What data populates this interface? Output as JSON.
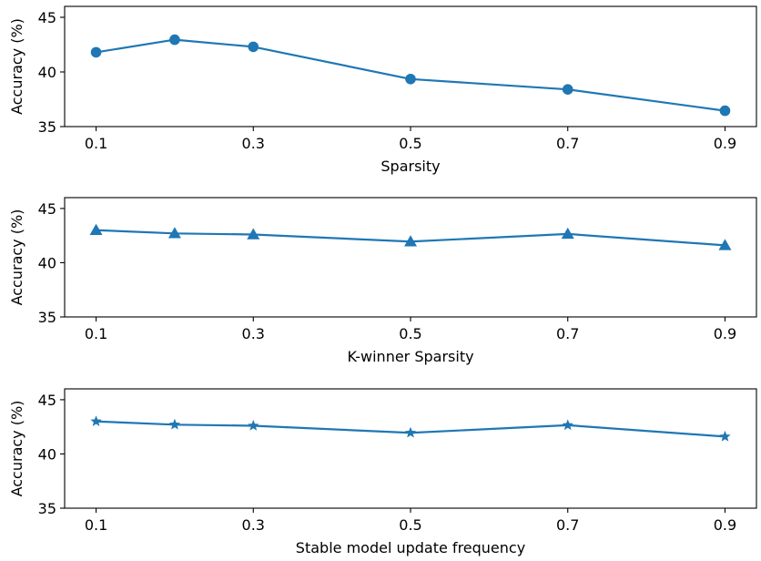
{
  "chart_data": [
    {
      "type": "line",
      "marker": "circle",
      "color": "#1f77b4",
      "xlabel": "Sparsity",
      "ylabel": "Accuracy (%)",
      "x": [
        0.1,
        0.2,
        0.3,
        0.5,
        0.7,
        0.9
      ],
      "xticks": [
        "0.1",
        "0.3",
        "0.5",
        "0.7",
        "0.9"
      ],
      "yticks": [
        "35",
        "40",
        "45"
      ],
      "xlim": [
        0.06,
        0.94
      ],
      "ylim": [
        35,
        46
      ],
      "grid": false,
      "series": [
        {
          "values": [
            41.8,
            42.95,
            42.3,
            39.35,
            38.4,
            36.45
          ]
        }
      ]
    },
    {
      "type": "line",
      "marker": "triangle",
      "color": "#1f77b4",
      "xlabel": "K-winner Sparsity",
      "ylabel": "Accuracy (%)",
      "x": [
        0.1,
        0.2,
        0.3,
        0.5,
        0.7,
        0.9
      ],
      "xticks": [
        "0.1",
        "0.3",
        "0.5",
        "0.7",
        "0.9"
      ],
      "yticks": [
        "35",
        "40",
        "45"
      ],
      "xlim": [
        0.06,
        0.94
      ],
      "ylim": [
        35,
        46
      ],
      "grid": false,
      "series": [
        {
          "values": [
            43.0,
            42.7,
            42.6,
            41.95,
            42.65,
            41.6
          ]
        }
      ]
    },
    {
      "type": "line",
      "marker": "star",
      "color": "#1f77b4",
      "xlabel": "Stable model update frequency",
      "ylabel": "Accuracy (%)",
      "x": [
        0.1,
        0.2,
        0.3,
        0.5,
        0.7,
        0.9
      ],
      "xticks": [
        "0.1",
        "0.3",
        "0.5",
        "0.7",
        "0.9"
      ],
      "yticks": [
        "35",
        "40",
        "45"
      ],
      "xlim": [
        0.06,
        0.94
      ],
      "ylim": [
        35,
        46
      ],
      "grid": false,
      "series": [
        {
          "values": [
            43.0,
            42.7,
            42.6,
            41.95,
            42.65,
            41.6
          ]
        }
      ]
    }
  ]
}
